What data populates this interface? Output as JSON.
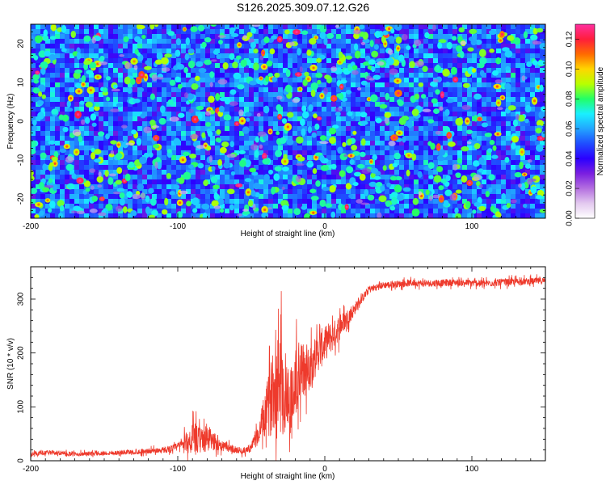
{
  "title": "S126.2025.309.07.12.G26",
  "colors": {
    "snr_line": "#ee3a2c",
    "background": "#ffffff",
    "axis": "#000000",
    "colormap": [
      "#ffffff",
      "#e3c9ef",
      "#b46fe0",
      "#7a1fe0",
      "#2b00ff",
      "#1f4dff",
      "#22a6ff",
      "#19f0ff",
      "#22ff66",
      "#b8ff00",
      "#ffd600",
      "#ff6a00",
      "#ff1e3c",
      "#ff2fa0"
    ]
  },
  "chart_data": [
    {
      "type": "heatmap",
      "title": "S126.2025.309.07.12.G26",
      "xlabel": "Height of straight line (km)",
      "ylabel": "Frequency (Hz)",
      "xlim": [
        -200,
        150
      ],
      "ylim": [
        -25,
        25
      ],
      "xticks": [
        -200,
        -100,
        0,
        100
      ],
      "yticks": [
        -20,
        -10,
        0,
        10,
        20
      ],
      "colorbar": {
        "label": "Normalized spectral amplitude",
        "range": [
          0,
          0.13
        ],
        "ticks": [
          "0.00",
          "0.02",
          "0.04",
          "0.06",
          "0.08",
          "0.10",
          "0.12"
        ],
        "tick_values": [
          0,
          0.02,
          0.04,
          0.06,
          0.08,
          0.1,
          0.12
        ]
      },
      "description": "speckled noise field, mostly 0.02-0.05 with scattered peaks near 0.12"
    },
    {
      "type": "line",
      "xlabel": "Height of straight line (km)",
      "ylabel": "SNR (10 * v/v)",
      "xlim": [
        -200,
        150
      ],
      "ylim": [
        0,
        360
      ],
      "xticks": [
        -200,
        -100,
        0,
        100
      ],
      "yticks": [
        0,
        100,
        200,
        300
      ],
      "series": [
        {
          "name": "SNR",
          "x": [
            -200,
            -190,
            -180,
            -170,
            -160,
            -150,
            -140,
            -130,
            -120,
            -110,
            -105,
            -100,
            -95,
            -90,
            -85,
            -80,
            -75,
            -70,
            -65,
            -60,
            -55,
            -50,
            -45,
            -42,
            -40,
            -37,
            -35,
            -32,
            -30,
            -28,
            -25,
            -22,
            -20,
            -18,
            -15,
            -12,
            -10,
            -8,
            -5,
            -2,
            0,
            2,
            5,
            8,
            10,
            12,
            15,
            18,
            20,
            22,
            25,
            28,
            30,
            35,
            40,
            50,
            60,
            70,
            80,
            90,
            100,
            110,
            120,
            130,
            140,
            150
          ],
          "values": [
            12,
            15,
            14,
            12,
            13,
            14,
            15,
            16,
            18,
            20,
            22,
            26,
            34,
            40,
            38,
            42,
            35,
            28,
            24,
            20,
            18,
            25,
            50,
            75,
            90,
            110,
            140,
            160,
            150,
            130,
            120,
            115,
            140,
            160,
            165,
            170,
            180,
            185,
            200,
            210,
            215,
            225,
            230,
            240,
            250,
            255,
            265,
            275,
            280,
            290,
            300,
            310,
            318,
            322,
            326,
            328,
            330,
            329,
            330,
            331,
            330,
            329,
            331,
            332,
            333,
            334
          ],
          "noise_amplitude": [
            5,
            5,
            5,
            5,
            5,
            5,
            5,
            6,
            6,
            7,
            8,
            10,
            20,
            40,
            30,
            35,
            20,
            12,
            10,
            8,
            8,
            10,
            25,
            45,
            60,
            80,
            100,
            120,
            130,
            110,
            90,
            80,
            90,
            85,
            70,
            60,
            55,
            50,
            45,
            45,
            40,
            40,
            35,
            30,
            30,
            25,
            20,
            18,
            15,
            12,
            10,
            10,
            9,
            8,
            8,
            8,
            8,
            8,
            8,
            8,
            8,
            8,
            8,
            8,
            8,
            8
          ]
        }
      ]
    }
  ]
}
